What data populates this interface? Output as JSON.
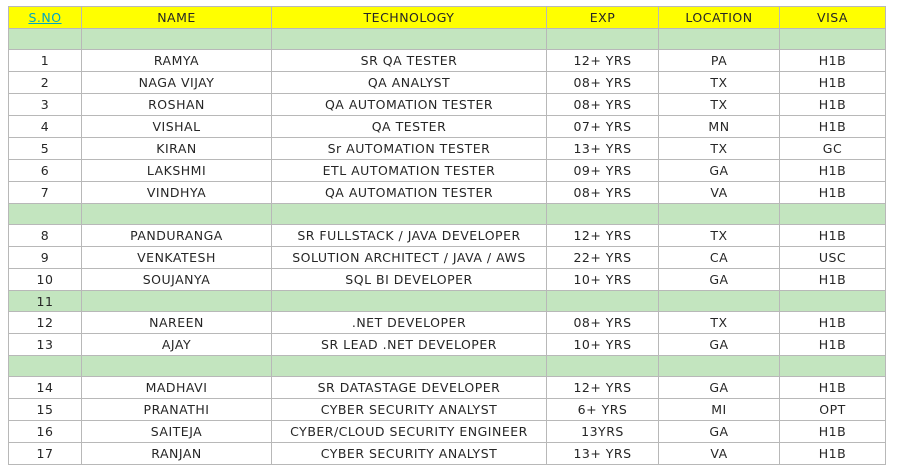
{
  "colors": {
    "header_bg": "#ffff00",
    "band_bg": "#c3e5bf",
    "link": "#00a6c4"
  },
  "headers": {
    "sno": "S.NO",
    "name": "NAME",
    "technology": "TECHNOLOGY",
    "exp": "EXP",
    "location": "LOCATION",
    "visa": "VISA"
  },
  "rows": [
    {
      "band": true,
      "sno": "",
      "name": "",
      "technology": "",
      "exp": "",
      "location": "",
      "visa": ""
    },
    {
      "sno": "1",
      "name": "RAMYA",
      "technology": "SR QA TESTER",
      "exp": "12+ YRS",
      "location": "PA",
      "visa": "H1B"
    },
    {
      "sno": "2",
      "name": "NAGA VIJAY",
      "technology": "QA ANALYST",
      "exp": "08+ YRS",
      "location": "TX",
      "visa": "H1B"
    },
    {
      "sno": "3",
      "name": "ROSHAN",
      "technology": "QA AUTOMATION TESTER",
      "exp": "08+ YRS",
      "location": "TX",
      "visa": "H1B"
    },
    {
      "sno": "4",
      "name": "VISHAL",
      "technology": "QA TESTER",
      "exp": "07+ YRS",
      "location": "MN",
      "visa": "H1B"
    },
    {
      "sno": "5",
      "name": "KIRAN",
      "technology": "Sr AUTOMATION TESTER",
      "exp": "13+ YRS",
      "location": "TX",
      "visa": "GC"
    },
    {
      "sno": "6",
      "name": "LAKSHMI",
      "technology": "ETL AUTOMATION TESTER",
      "exp": "09+ YRS",
      "location": "GA",
      "visa": "H1B"
    },
    {
      "sno": "7",
      "name": "VINDHYA",
      "technology": "QA AUTOMATION TESTER",
      "exp": "08+ YRS",
      "location": "VA",
      "visa": "H1B"
    },
    {
      "band": true,
      "sno": "",
      "name": "",
      "technology": "",
      "exp": "",
      "location": "",
      "visa": ""
    },
    {
      "sno": "8",
      "name": "PANDURANGA",
      "technology": "SR FULLSTACK / JAVA DEVELOPER",
      "exp": "12+ YRS",
      "location": "TX",
      "visa": "H1B"
    },
    {
      "sno": "9",
      "name": "VENKATESH",
      "technology": "SOLUTION ARCHITECT / JAVA / AWS",
      "exp": "22+ YRS",
      "location": "CA",
      "visa": "USC"
    },
    {
      "sno": "10",
      "name": "SOUJANYA",
      "technology": "SQL BI DEVELOPER",
      "exp": "10+ YRS",
      "location": "GA",
      "visa": "H1B"
    },
    {
      "band": true,
      "sno": "11",
      "name": "",
      "technology": "",
      "exp": "",
      "location": "",
      "visa": ""
    },
    {
      "sno": "12",
      "name": "NAREEN",
      "technology": ".NET DEVELOPER",
      "exp": "08+ YRS",
      "location": "TX",
      "visa": "H1B"
    },
    {
      "sno": "13",
      "name": "AJAY",
      "technology": "SR LEAD .NET DEVELOPER",
      "exp": "10+ YRS",
      "location": "GA",
      "visa": "H1B"
    },
    {
      "band": true,
      "sno": "",
      "name": "",
      "technology": "",
      "exp": "",
      "location": "",
      "visa": ""
    },
    {
      "sno": "14",
      "name": "MADHAVI",
      "technology": "SR DATASTAGE DEVELOPER",
      "exp": "12+ YRS",
      "location": "GA",
      "visa": "H1B"
    },
    {
      "sno": "15",
      "name": "PRANATHI",
      "technology": "CYBER SECURITY ANALYST",
      "exp": "6+ YRS",
      "location": "MI",
      "visa": "OPT"
    },
    {
      "sno": "16",
      "name": "SAITEJA",
      "technology": "CYBER/CLOUD SECURITY ENGINEER",
      "exp": "13YRS",
      "location": "GA",
      "visa": "H1B"
    },
    {
      "sno": "17",
      "name": "RANJAN",
      "technology": "CYBER SECURITY ANALYST",
      "exp": "13+ YRS",
      "location": "VA",
      "visa": "H1B"
    }
  ]
}
